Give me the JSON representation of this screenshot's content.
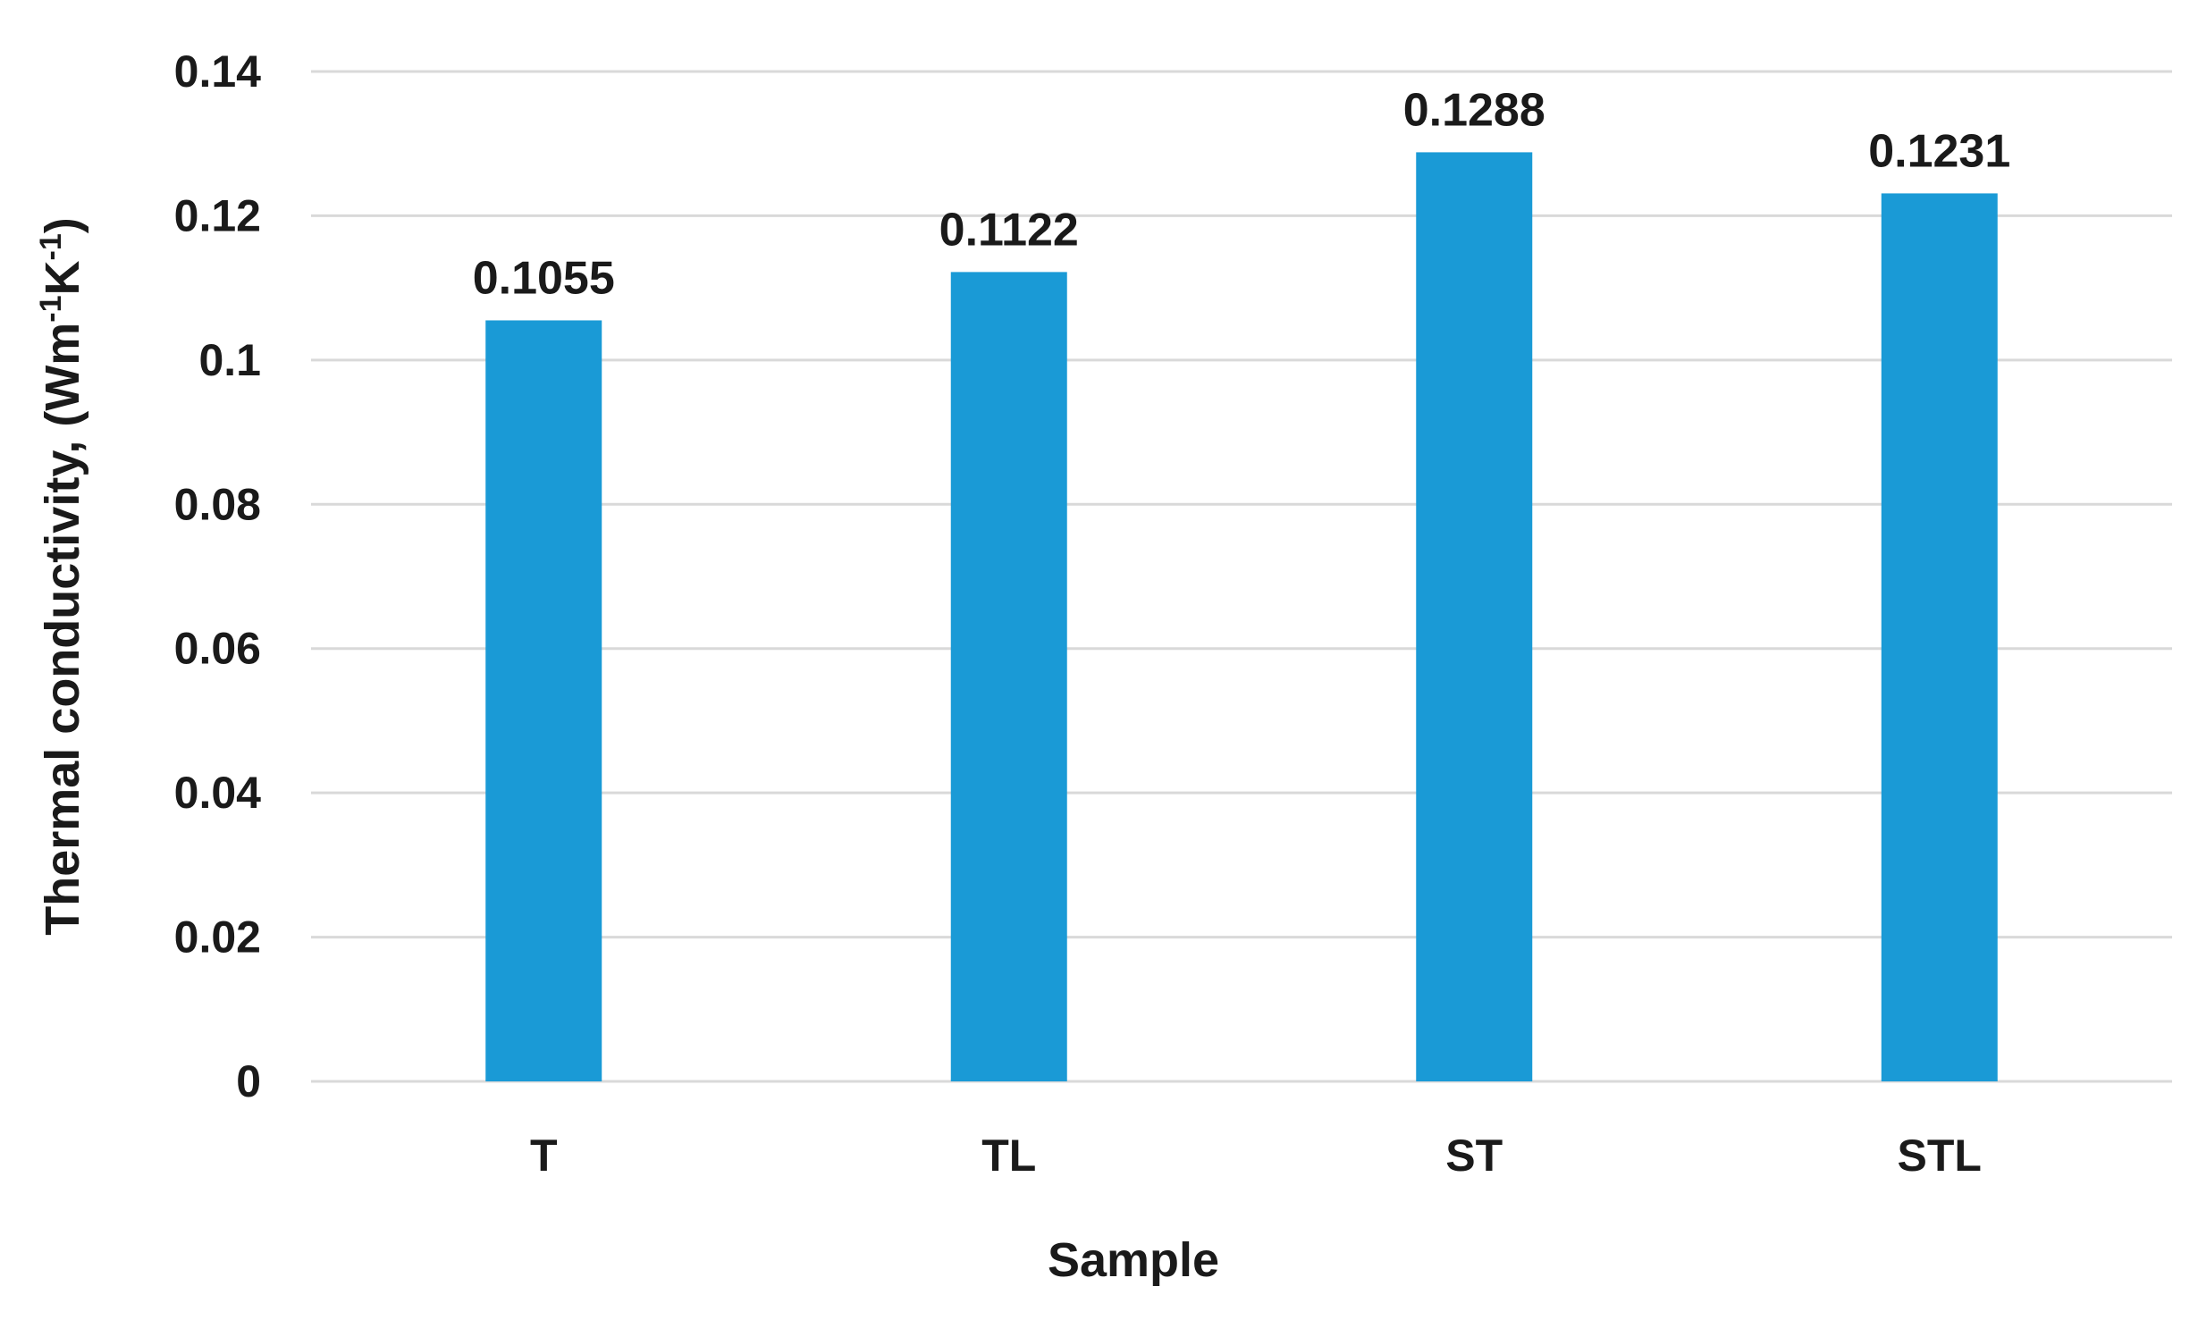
{
  "chart_data": {
    "type": "bar",
    "title": "",
    "xlabel": "Sample",
    "ylabel_main": "Thermal conductivity, (Wm",
    "ylabel_sup1": "-1",
    "ylabel_mid": "K",
    "ylabel_sup2": "-1",
    "ylabel_end": ")",
    "categories": [
      "T",
      "TL",
      "ST",
      "STL"
    ],
    "values": [
      0.1055,
      0.1122,
      0.1288,
      0.1231
    ],
    "value_labels": [
      "0.1055",
      "0.1122",
      "0.1288",
      "0.1231"
    ],
    "yticks": [
      "0",
      "0.02",
      "0.04",
      "0.06",
      "0.08",
      "0.1",
      "0.12",
      "0.14"
    ],
    "ylim": [
      0,
      0.14
    ],
    "grid": true,
    "legend": "none",
    "bar_color": "#1a9ad6",
    "grid_color": "#d9d9d9"
  }
}
